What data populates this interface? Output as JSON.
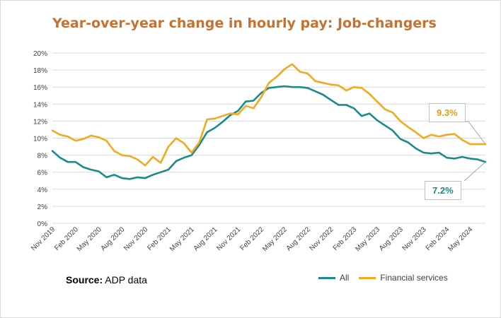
{
  "title": "Year-over-year change in hourly pay: Job-changers",
  "source_label": "Source:",
  "source_text": "ADP data",
  "colors": {
    "title": "#c8702e",
    "all": "#1a8a8c",
    "financial": "#f2a91e",
    "grid": "#d9d9d9",
    "axis_text": "#404040"
  },
  "callouts": {
    "financial_value": "9.3%",
    "all_value": "7.2%"
  },
  "chart_data": {
    "type": "line",
    "title": "Year-over-year change in hourly pay: Job-changers",
    "xlabel": "",
    "ylabel": "",
    "ylim": [
      0,
      20
    ],
    "y_ticks": [
      "0%",
      "2%",
      "4%",
      "6%",
      "8%",
      "10%",
      "12%",
      "14%",
      "16%",
      "18%",
      "20%"
    ],
    "x_tick_labels": [
      "Nov 2019",
      "Feb 2020",
      "May 2020",
      "Aug 2020",
      "Nov 2020",
      "Feb 2021",
      "May 2021",
      "Aug 2021",
      "Nov 2021",
      "Feb 2022",
      "May 2022",
      "Aug 2022",
      "Nov 2022",
      "Feb 2023",
      "May 2023",
      "Aug 2023",
      "Nov 2023",
      "Feb 2024",
      "May 2024"
    ],
    "x": [
      "2019-11",
      "2019-12",
      "2020-01",
      "2020-02",
      "2020-03",
      "2020-04",
      "2020-05",
      "2020-06",
      "2020-07",
      "2020-08",
      "2020-09",
      "2020-10",
      "2020-11",
      "2020-12",
      "2021-01",
      "2021-02",
      "2021-03",
      "2021-04",
      "2021-05",
      "2021-06",
      "2021-07",
      "2021-08",
      "2021-09",
      "2021-10",
      "2021-11",
      "2021-12",
      "2022-01",
      "2022-02",
      "2022-03",
      "2022-04",
      "2022-05",
      "2022-06",
      "2022-07",
      "2022-08",
      "2022-09",
      "2022-10",
      "2022-11",
      "2022-12",
      "2023-01",
      "2023-02",
      "2023-03",
      "2023-04",
      "2023-05",
      "2023-06",
      "2023-07",
      "2023-08",
      "2023-09",
      "2023-10",
      "2023-11",
      "2023-12",
      "2024-01",
      "2024-02",
      "2024-03",
      "2024-04",
      "2024-05",
      "2024-06",
      "2024-07"
    ],
    "grid": true,
    "legend_position": "bottom",
    "series": [
      {
        "name": "All",
        "values": [
          8.5,
          7.7,
          7.2,
          7.2,
          6.6,
          6.3,
          6.1,
          5.4,
          5.7,
          5.3,
          5.2,
          5.4,
          5.3,
          5.7,
          6.0,
          6.3,
          7.3,
          7.7,
          8.0,
          9.2,
          10.7,
          11.2,
          11.9,
          12.7,
          13.2,
          14.3,
          14.4,
          15.3,
          15.9,
          16.0,
          16.1,
          16.0,
          16.0,
          15.9,
          15.5,
          15.1,
          14.5,
          13.9,
          13.9,
          13.5,
          12.6,
          12.9,
          12.1,
          11.5,
          10.9,
          9.9,
          9.5,
          8.8,
          8.3,
          8.2,
          8.3,
          7.7,
          7.6,
          7.8,
          7.6,
          7.5,
          7.2
        ]
      },
      {
        "name": "Financial services",
        "values": [
          10.9,
          10.4,
          10.2,
          9.7,
          9.9,
          10.3,
          10.1,
          9.7,
          8.5,
          8.0,
          7.9,
          7.5,
          6.8,
          7.8,
          7.1,
          9.0,
          10.0,
          9.4,
          8.3,
          9.5,
          12.2,
          12.3,
          12.6,
          12.9,
          12.8,
          13.8,
          13.5,
          14.8,
          16.5,
          17.2,
          18.1,
          18.7,
          17.8,
          17.6,
          16.7,
          16.5,
          16.3,
          16.2,
          15.6,
          16.0,
          15.9,
          15.2,
          14.3,
          13.4,
          13.0,
          12.0,
          11.3,
          10.7,
          10.0,
          10.4,
          10.2,
          10.4,
          10.5,
          9.8,
          9.3,
          9.3,
          9.3
        ]
      }
    ]
  }
}
